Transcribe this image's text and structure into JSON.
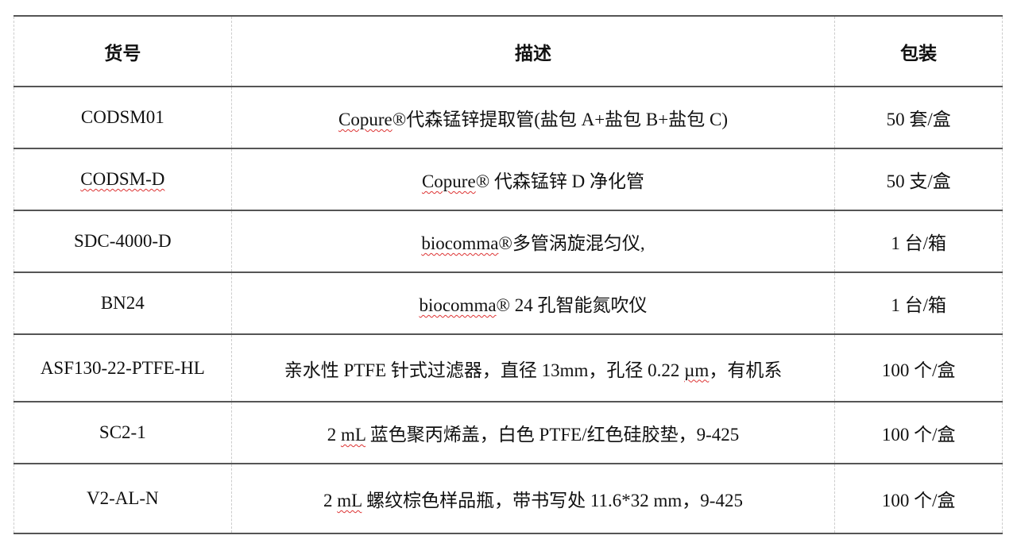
{
  "headers": [
    "货号",
    "描述",
    "包装"
  ],
  "rows": [
    {
      "code": "CODSM01",
      "code_flag": false,
      "desc": [
        {
          "t": "Copure",
          "flag": true
        },
        {
          "t": "®代森锰锌提取管(盐包 A+盐包 B+盐包 C)"
        }
      ],
      "pack": "50 套/盒"
    },
    {
      "code": "CODSM-D",
      "code_flag": true,
      "desc": [
        {
          "t": "Copure",
          "flag": true
        },
        {
          "t": "® 代森锰锌 D 净化管"
        }
      ],
      "pack": "50 支/盒"
    },
    {
      "code": "SDC-4000-D",
      "code_flag": false,
      "desc": [
        {
          "t": "biocomma",
          "flag": true
        },
        {
          "t": "®多管涡旋混匀仪,"
        }
      ],
      "pack": "1 台/箱"
    },
    {
      "code": "BN24",
      "code_flag": false,
      "desc": [
        {
          "t": "biocomma",
          "flag": true
        },
        {
          "t": "® 24 孔智能氮吹仪"
        }
      ],
      "pack": "1 台/箱"
    },
    {
      "code": "ASF130-22-PTFE-HL",
      "code_flag": false,
      "desc": [
        {
          "t": "亲水性 PTFE 针式过滤器，直径 13mm，孔径 0.22 "
        },
        {
          "t": "µm",
          "flag": true
        },
        {
          "t": "，有机系"
        }
      ],
      "pack": "100 个/盒"
    },
    {
      "code": "SC2-1",
      "code_flag": false,
      "desc": [
        {
          "t": "2 "
        },
        {
          "t": "mL",
          "flag": true
        },
        {
          "t": " 蓝色聚丙烯盖，白色 PTFE/红色硅胶垫，9-425"
        }
      ],
      "pack": "100 个/盒"
    },
    {
      "code": "V2-AL-N",
      "code_flag": false,
      "desc": [
        {
          "t": "2 "
        },
        {
          "t": "mL",
          "flag": true
        },
        {
          "t": " 螺纹棕色样品瓶，带书写处 11.6*32 mm，9-425"
        }
      ],
      "pack": "100 个/盒"
    }
  ],
  "colors": {
    "rule": "#555555",
    "spellcheck": "#dd3333"
  }
}
